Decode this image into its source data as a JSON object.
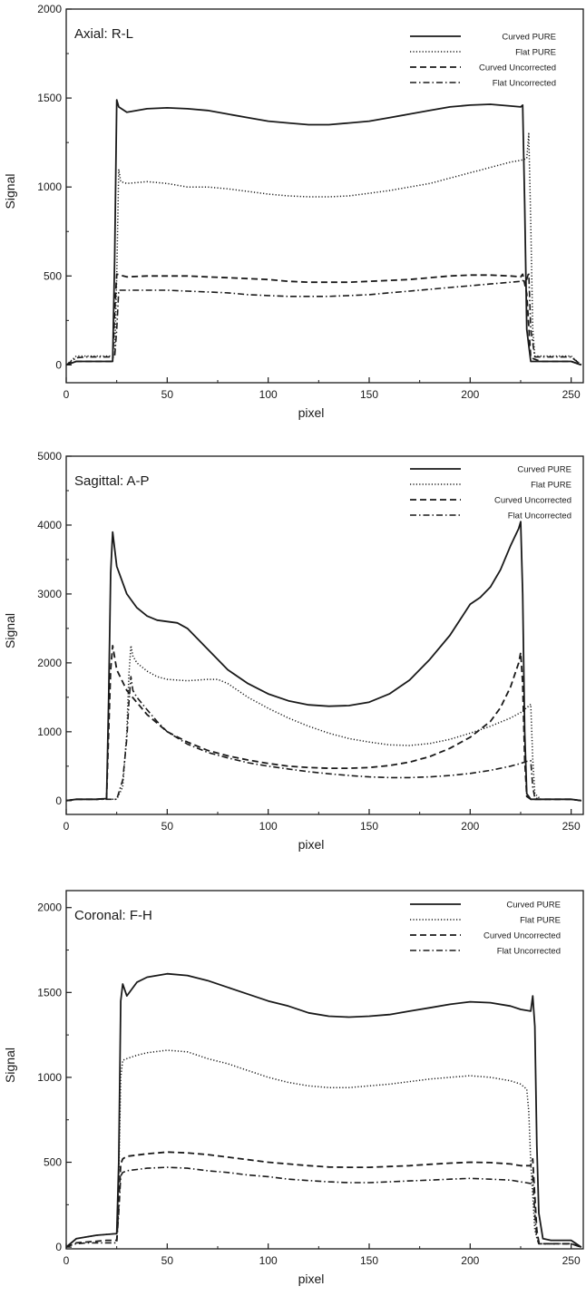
{
  "chart_data": [
    {
      "type": "line",
      "title": "Axial: R-L",
      "xlabel": "pixel",
      "ylabel": "Signal",
      "xlim": [
        0,
        256
      ],
      "ylim": [
        -100,
        2000
      ],
      "xticks": [
        0,
        50,
        100,
        150,
        200,
        250
      ],
      "yticks": [
        0,
        500,
        1000,
        1500,
        2000
      ],
      "legend": "top-right",
      "grid": false,
      "series": [
        {
          "name": "Curved PURE",
          "style": "solid",
          "x": [
            0,
            5,
            10,
            15,
            20,
            23,
            24,
            25,
            26,
            30,
            40,
            50,
            60,
            70,
            80,
            90,
            100,
            110,
            120,
            130,
            140,
            150,
            160,
            170,
            180,
            190,
            200,
            210,
            220,
            225,
            226,
            227,
            228,
            230,
            235,
            240,
            245,
            250,
            255
          ],
          "y": [
            0,
            20,
            20,
            20,
            20,
            20,
            600,
            1490,
            1450,
            1420,
            1440,
            1445,
            1440,
            1430,
            1410,
            1390,
            1370,
            1360,
            1350,
            1350,
            1360,
            1370,
            1390,
            1410,
            1430,
            1450,
            1460,
            1465,
            1455,
            1450,
            1460,
            900,
            200,
            20,
            20,
            20,
            20,
            20,
            0
          ]
        },
        {
          "name": "Flat PURE",
          "style": "dotted",
          "x": [
            0,
            5,
            10,
            15,
            20,
            24,
            25,
            26,
            27,
            30,
            40,
            50,
            60,
            70,
            80,
            90,
            100,
            110,
            120,
            130,
            140,
            150,
            160,
            170,
            180,
            190,
            200,
            210,
            220,
            225,
            228,
            229,
            230,
            231,
            232,
            235,
            240,
            245,
            250,
            255
          ],
          "y": [
            0,
            50,
            50,
            50,
            50,
            50,
            500,
            1100,
            1030,
            1020,
            1030,
            1020,
            1000,
            1000,
            990,
            975,
            960,
            950,
            945,
            945,
            950,
            965,
            980,
            1000,
            1020,
            1050,
            1080,
            1110,
            1140,
            1150,
            1160,
            1300,
            800,
            200,
            50,
            50,
            50,
            50,
            50,
            0
          ]
        },
        {
          "name": "Curved Uncorrected",
          "style": "dashed",
          "x": [
            0,
            5,
            10,
            15,
            20,
            23,
            24,
            25,
            30,
            40,
            50,
            60,
            70,
            80,
            90,
            100,
            110,
            120,
            130,
            140,
            150,
            160,
            170,
            180,
            190,
            200,
            210,
            220,
            225,
            226,
            228,
            230,
            235,
            240,
            245,
            250,
            255
          ],
          "y": [
            0,
            20,
            20,
            20,
            20,
            20,
            300,
            510,
            495,
            500,
            500,
            500,
            495,
            490,
            485,
            480,
            470,
            465,
            465,
            465,
            470,
            475,
            480,
            490,
            500,
            505,
            505,
            500,
            495,
            510,
            400,
            40,
            20,
            20,
            20,
            20,
            0
          ]
        },
        {
          "name": "Flat Uncorrected",
          "style": "dashdot",
          "x": [
            0,
            5,
            10,
            15,
            20,
            24,
            25,
            26,
            30,
            40,
            50,
            60,
            70,
            80,
            90,
            100,
            110,
            120,
            130,
            140,
            150,
            160,
            170,
            180,
            190,
            200,
            210,
            220,
            225,
            228,
            229,
            230,
            232,
            235,
            240,
            245,
            250,
            255
          ],
          "y": [
            0,
            40,
            45,
            45,
            45,
            45,
            200,
            420,
            420,
            420,
            420,
            415,
            410,
            405,
            395,
            390,
            385,
            385,
            385,
            390,
            395,
            405,
            415,
            425,
            435,
            445,
            455,
            465,
            470,
            480,
            520,
            200,
            45,
            45,
            45,
            45,
            45,
            0
          ]
        }
      ]
    },
    {
      "type": "line",
      "title": "Sagittal: A-P",
      "xlabel": "pixel",
      "ylabel": "Signal",
      "xlim": [
        0,
        256
      ],
      "ylim": [
        -200,
        5000
      ],
      "xticks": [
        0,
        50,
        100,
        150,
        200,
        250
      ],
      "yticks": [
        0,
        1000,
        2000,
        3000,
        4000,
        5000
      ],
      "legend": "top-right",
      "grid": false,
      "series": [
        {
          "name": "Curved PURE",
          "style": "solid",
          "x": [
            0,
            5,
            10,
            15,
            20,
            21,
            22,
            23,
            25,
            30,
            35,
            40,
            45,
            50,
            55,
            60,
            70,
            80,
            90,
            100,
            110,
            120,
            130,
            140,
            150,
            160,
            170,
            180,
            190,
            200,
            205,
            210,
            215,
            220,
            224,
            225,
            226,
            227,
            228,
            230,
            235,
            240,
            245,
            250,
            255
          ],
          "y": [
            0,
            20,
            20,
            20,
            30,
            1500,
            3300,
            3900,
            3400,
            3000,
            2800,
            2680,
            2620,
            2600,
            2580,
            2500,
            2200,
            1900,
            1700,
            1550,
            1450,
            1390,
            1370,
            1380,
            1430,
            1550,
            1750,
            2050,
            2400,
            2850,
            2950,
            3100,
            3350,
            3700,
            3950,
            4050,
            3000,
            1000,
            100,
            20,
            20,
            20,
            20,
            20,
            0
          ]
        },
        {
          "name": "Flat PURE",
          "style": "dotted",
          "x": [
            0,
            5,
            10,
            15,
            20,
            25,
            28,
            30,
            31,
            32,
            33,
            35,
            40,
            45,
            50,
            60,
            70,
            75,
            80,
            90,
            100,
            110,
            120,
            130,
            140,
            150,
            160,
            170,
            180,
            190,
            200,
            210,
            220,
            225,
            228,
            230,
            231,
            232,
            235,
            240,
            245,
            250,
            255
          ],
          "y": [
            0,
            20,
            20,
            20,
            20,
            20,
            200,
            1000,
            1800,
            2250,
            2100,
            2000,
            1880,
            1800,
            1760,
            1740,
            1760,
            1760,
            1700,
            1500,
            1340,
            1200,
            1080,
            980,
            900,
            850,
            810,
            800,
            830,
            890,
            980,
            1080,
            1200,
            1280,
            1350,
            1400,
            600,
            100,
            20,
            20,
            20,
            20,
            0
          ]
        },
        {
          "name": "Curved Uncorrected",
          "style": "dashed",
          "x": [
            0,
            5,
            10,
            15,
            20,
            21,
            22,
            23,
            25,
            30,
            40,
            50,
            60,
            70,
            80,
            90,
            100,
            110,
            120,
            130,
            140,
            150,
            160,
            170,
            180,
            190,
            200,
            210,
            215,
            220,
            224,
            225,
            226,
            227,
            228,
            230,
            235,
            240,
            245,
            250,
            255
          ],
          "y": [
            0,
            20,
            20,
            20,
            30,
            1000,
            1900,
            2250,
            1900,
            1600,
            1250,
            1000,
            850,
            730,
            650,
            590,
            540,
            500,
            480,
            470,
            470,
            480,
            510,
            560,
            640,
            760,
            920,
            1150,
            1350,
            1650,
            2000,
            2150,
            1700,
            600,
            60,
            20,
            20,
            20,
            20,
            20,
            0
          ]
        },
        {
          "name": "Flat Uncorrected",
          "style": "dashdot",
          "x": [
            0,
            5,
            10,
            15,
            20,
            25,
            28,
            30,
            31,
            32,
            33,
            35,
            40,
            45,
            50,
            60,
            70,
            80,
            90,
            100,
            110,
            120,
            130,
            140,
            150,
            160,
            170,
            180,
            190,
            200,
            210,
            220,
            225,
            228,
            230,
            231,
            232,
            235,
            240,
            245,
            250,
            255
          ],
          "y": [
            0,
            20,
            20,
            20,
            20,
            20,
            300,
            900,
            1400,
            1800,
            1600,
            1500,
            1320,
            1150,
            1000,
            820,
            700,
            620,
            550,
            500,
            460,
            420,
            390,
            365,
            345,
            335,
            335,
            345,
            365,
            395,
            440,
            500,
            540,
            570,
            580,
            200,
            40,
            20,
            20,
            20,
            20,
            0
          ]
        }
      ]
    },
    {
      "type": "line",
      "title": "Coronal: F-H",
      "xlabel": "pixel",
      "ylabel": "Signal",
      "xlim": [
        0,
        256
      ],
      "ylim": [
        -10,
        2100
      ],
      "xticks": [
        0,
        50,
        100,
        150,
        200,
        250
      ],
      "yticks": [
        0,
        500,
        1000,
        1500,
        2000
      ],
      "legend": "top-right",
      "grid": false,
      "series": [
        {
          "name": "Curved PURE",
          "style": "solid",
          "x": [
            0,
            3,
            5,
            10,
            15,
            20,
            25,
            26,
            27,
            28,
            30,
            35,
            40,
            50,
            60,
            70,
            80,
            90,
            100,
            110,
            120,
            130,
            140,
            150,
            160,
            170,
            180,
            190,
            200,
            210,
            220,
            225,
            230,
            231,
            232,
            233,
            234,
            236,
            240,
            245,
            250,
            255
          ],
          "y": [
            0,
            30,
            50,
            60,
            70,
            75,
            80,
            500,
            1450,
            1550,
            1480,
            1560,
            1590,
            1610,
            1600,
            1570,
            1530,
            1490,
            1450,
            1420,
            1380,
            1360,
            1355,
            1360,
            1370,
            1390,
            1410,
            1430,
            1445,
            1440,
            1420,
            1400,
            1390,
            1480,
            1300,
            600,
            200,
            50,
            40,
            40,
            40,
            0
          ]
        },
        {
          "name": "Flat PURE",
          "style": "dotted",
          "x": [
            0,
            3,
            5,
            10,
            15,
            20,
            25,
            26,
            27,
            28,
            30,
            35,
            40,
            50,
            60,
            70,
            80,
            90,
            100,
            110,
            120,
            130,
            140,
            150,
            160,
            170,
            180,
            190,
            200,
            210,
            220,
            225,
            228,
            229,
            230,
            232,
            234,
            236,
            240,
            245,
            250,
            255
          ],
          "y": [
            0,
            30,
            50,
            60,
            70,
            75,
            80,
            400,
            1000,
            1100,
            1110,
            1130,
            1145,
            1160,
            1150,
            1110,
            1080,
            1040,
            1000,
            970,
            950,
            940,
            940,
            950,
            960,
            975,
            990,
            1000,
            1010,
            1000,
            980,
            960,
            930,
            800,
            500,
            100,
            20,
            20,
            20,
            20,
            20,
            0
          ]
        },
        {
          "name": "Curved Uncorrected",
          "style": "dashed",
          "x": [
            0,
            3,
            5,
            10,
            15,
            20,
            25,
            26,
            27,
            28,
            30,
            40,
            50,
            60,
            70,
            80,
            90,
            100,
            110,
            120,
            130,
            140,
            150,
            160,
            170,
            180,
            190,
            200,
            210,
            220,
            225,
            230,
            231,
            232,
            233,
            234,
            236,
            240,
            245,
            250,
            255
          ],
          "y": [
            0,
            15,
            25,
            30,
            35,
            40,
            40,
            250,
            490,
            520,
            535,
            550,
            560,
            555,
            545,
            530,
            515,
            500,
            490,
            480,
            472,
            470,
            470,
            475,
            480,
            488,
            495,
            500,
            498,
            490,
            480,
            480,
            520,
            300,
            100,
            30,
            20,
            20,
            20,
            20,
            0
          ]
        },
        {
          "name": "Flat Uncorrected",
          "style": "dashdot",
          "x": [
            0,
            3,
            5,
            10,
            15,
            20,
            25,
            26,
            27,
            28,
            30,
            40,
            50,
            60,
            70,
            80,
            90,
            100,
            110,
            120,
            130,
            140,
            150,
            160,
            170,
            180,
            190,
            200,
            210,
            220,
            225,
            230,
            231,
            232,
            233,
            234,
            236,
            240,
            245,
            250,
            255
          ],
          "y": [
            0,
            15,
            20,
            25,
            25,
            25,
            25,
            200,
            420,
            440,
            450,
            465,
            470,
            465,
            450,
            440,
            425,
            415,
            400,
            392,
            385,
            380,
            380,
            385,
            390,
            395,
            400,
            405,
            400,
            395,
            385,
            375,
            420,
            200,
            50,
            20,
            20,
            20,
            20,
            20,
            0
          ]
        }
      ]
    }
  ],
  "styles": {
    "line_color": "#1a1a1a",
    "axis_color": "#1a1a1a",
    "background": "#ffffff"
  }
}
